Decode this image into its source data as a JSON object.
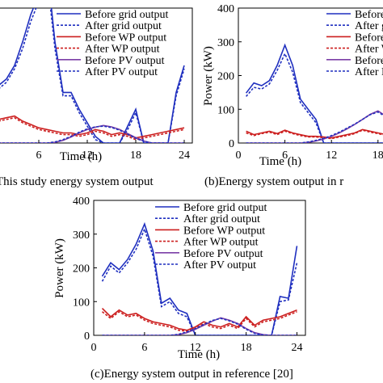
{
  "chart_data": [
    {
      "type": "line",
      "caption": "This study energy system output",
      "xlabel": "Time (h)",
      "ylabel": "",
      "xticks": [
        6,
        12,
        18,
        24
      ],
      "yticks": [],
      "legend": {
        "placement": "top-right"
      },
      "series": [
        {
          "name": "Before grid output",
          "color": "#1f2fbf",
          "style": "solid",
          "x": [
            1,
            2,
            3,
            4,
            5,
            6,
            7,
            8,
            9,
            10,
            11,
            12,
            13,
            14,
            15,
            16,
            17,
            18,
            19,
            20,
            21,
            22,
            23,
            24
          ],
          "y": [
            170,
            190,
            230,
            300,
            380,
            440,
            530,
            300,
            150,
            150,
            100,
            60,
            20,
            0,
            0,
            0,
            50,
            100,
            0,
            0,
            0,
            0,
            150,
            230
          ]
        },
        {
          "name": "After grid output",
          "color": "#1f2fbf",
          "style": "dotted",
          "x": [
            1,
            2,
            3,
            4,
            5,
            6,
            7,
            8,
            9,
            10,
            11,
            12,
            13,
            14,
            15,
            16,
            17,
            18,
            19,
            20,
            21,
            22,
            23,
            24
          ],
          "y": [
            160,
            180,
            220,
            280,
            360,
            420,
            500,
            280,
            140,
            140,
            90,
            50,
            10,
            0,
            0,
            0,
            40,
            90,
            0,
            0,
            0,
            0,
            140,
            220
          ]
        },
        {
          "name": "Before WP output",
          "color": "#cc1f1f",
          "style": "solid",
          "x": [
            1,
            2,
            3,
            4,
            5,
            6,
            7,
            8,
            9,
            10,
            11,
            12,
            13,
            14,
            15,
            16,
            17,
            18,
            19,
            20,
            21,
            22,
            23,
            24
          ],
          "y": [
            70,
            75,
            80,
            65,
            55,
            45,
            40,
            35,
            30,
            30,
            25,
            30,
            40,
            35,
            25,
            30,
            25,
            15,
            20,
            25,
            30,
            35,
            40,
            45
          ]
        },
        {
          "name": "After WP output",
          "color": "#cc1f1f",
          "style": "dotted",
          "x": [
            1,
            2,
            3,
            4,
            5,
            6,
            7,
            8,
            9,
            10,
            11,
            12,
            13,
            14,
            15,
            16,
            17,
            18,
            19,
            20,
            21,
            22,
            23,
            24
          ],
          "y": [
            65,
            70,
            75,
            60,
            50,
            40,
            35,
            30,
            25,
            25,
            20,
            25,
            35,
            30,
            20,
            25,
            20,
            10,
            15,
            20,
            25,
            30,
            35,
            40
          ]
        },
        {
          "name": "Before PV output",
          "color": "#7b3fa6",
          "style": "solid",
          "x": [
            1,
            2,
            3,
            4,
            5,
            6,
            7,
            8,
            9,
            10,
            11,
            12,
            13,
            14,
            15,
            16,
            17,
            18,
            19,
            20,
            21,
            22,
            23,
            24
          ],
          "y": [
            0,
            0,
            0,
            0,
            0,
            0,
            0,
            2,
            8,
            18,
            30,
            40,
            47,
            52,
            48,
            40,
            28,
            16,
            6,
            0,
            0,
            0,
            0,
            0
          ]
        },
        {
          "name": "After PV output",
          "color": "#1f2fbf",
          "style": "dotted",
          "x": [
            1,
            2,
            3,
            4,
            5,
            6,
            7,
            8,
            9,
            10,
            11,
            12,
            13,
            14,
            15,
            16,
            17,
            18,
            19,
            20,
            21,
            22,
            23,
            24
          ],
          "y": [
            0,
            0,
            0,
            0,
            0,
            0,
            0,
            3,
            10,
            20,
            32,
            42,
            48,
            50,
            46,
            38,
            26,
            14,
            5,
            0,
            0,
            0,
            0,
            0
          ]
        }
      ],
      "xlim": [
        0,
        25
      ],
      "ylim": [
        0,
        400
      ]
    },
    {
      "type": "line",
      "caption": "(b)Energy system output in r",
      "xlabel": "Time (h)",
      "ylabel": "Power (kW)",
      "xticks": [
        0,
        6,
        12,
        18
      ],
      "yticks": [
        0,
        100,
        200,
        300,
        400
      ],
      "legend": {
        "placement": "top-right"
      },
      "series": [
        {
          "name": "Before grid output",
          "color": "#1f2fbf",
          "style": "solid",
          "x": [
            1,
            2,
            3,
            4,
            5,
            6,
            7,
            8,
            9,
            10,
            11,
            12,
            13,
            14,
            15,
            16,
            17,
            18,
            19,
            20,
            21,
            22,
            23,
            24
          ],
          "y": [
            148,
            178,
            170,
            185,
            230,
            290,
            230,
            130,
            100,
            70,
            0,
            0,
            0,
            0,
            0,
            0,
            0,
            0,
            0,
            0,
            0,
            0,
            0,
            0
          ]
        },
        {
          "name": "After grid output",
          "color": "#1f2fbf",
          "style": "dotted",
          "x": [
            1,
            2,
            3,
            4,
            5,
            6,
            7,
            8,
            9,
            10,
            11,
            12,
            13,
            14,
            15,
            16,
            17,
            18,
            19,
            20,
            21,
            22,
            23,
            24
          ],
          "y": [
            138,
            165,
            160,
            175,
            215,
            265,
            210,
            120,
            90,
            60,
            0,
            0,
            0,
            0,
            0,
            0,
            0,
            0,
            0,
            0,
            0,
            0,
            0,
            0
          ]
        },
        {
          "name": "Before WP output",
          "color": "#cc1f1f",
          "style": "solid",
          "x": [
            1,
            2,
            3,
            4,
            5,
            6,
            7,
            8,
            9,
            10,
            11,
            12,
            13,
            14,
            15,
            16,
            17,
            18,
            19,
            20,
            21,
            22,
            23,
            24
          ],
          "y": [
            35,
            25,
            30,
            35,
            28,
            38,
            30,
            25,
            20,
            20,
            18,
            15,
            20,
            25,
            30,
            40,
            35,
            30,
            25,
            20,
            15,
            20,
            25,
            30
          ]
        },
        {
          "name": "After WP output",
          "color": "#cc1f1f",
          "style": "dotted",
          "x": [
            1,
            2,
            3,
            4,
            5,
            6,
            7,
            8,
            9,
            10,
            11,
            12,
            13,
            14,
            15,
            16,
            17,
            18,
            19,
            20,
            21,
            22,
            23,
            24
          ],
          "y": [
            30,
            22,
            28,
            32,
            25,
            35,
            28,
            22,
            18,
            18,
            16,
            13,
            18,
            22,
            28,
            38,
            32,
            28,
            22,
            18,
            13,
            18,
            22,
            28
          ]
        },
        {
          "name": "Before PV output",
          "color": "#7b3fa6",
          "style": "solid",
          "x": [
            1,
            2,
            3,
            4,
            5,
            6,
            7,
            8,
            9,
            10,
            11,
            12,
            13,
            14,
            15,
            16,
            17,
            18,
            19,
            20,
            21,
            22,
            23,
            24
          ],
          "y": [
            0,
            0,
            0,
            0,
            0,
            0,
            0,
            0,
            2,
            6,
            12,
            20,
            30,
            42,
            55,
            70,
            85,
            95,
            80,
            60,
            35,
            15,
            5,
            0
          ]
        },
        {
          "name": "After PV output",
          "color": "#1f2fbf",
          "style": "dotted",
          "x": [
            1,
            2,
            3,
            4,
            5,
            6,
            7,
            8,
            9,
            10,
            11,
            12,
            13,
            14,
            15,
            16,
            17,
            18,
            19,
            20,
            21,
            22,
            23,
            24
          ],
          "y": [
            0,
            0,
            0,
            0,
            0,
            0,
            0,
            0,
            3,
            8,
            14,
            22,
            32,
            44,
            56,
            70,
            84,
            92,
            78,
            58,
            34,
            14,
            4,
            0
          ]
        }
      ],
      "xlim": [
        0,
        25
      ],
      "ylim": [
        0,
        400
      ]
    },
    {
      "type": "line",
      "caption": "(c)Energy system output in reference [20]",
      "xlabel": "Time (h)",
      "ylabel": "Power (kW)",
      "xticks": [
        0,
        6,
        12,
        18,
        24
      ],
      "yticks": [
        0,
        100,
        200,
        300,
        400
      ],
      "legend": {
        "placement": "top-right"
      },
      "series": [
        {
          "name": "Before grid output",
          "color": "#1f2fbf",
          "style": "solid",
          "x": [
            1,
            2,
            3,
            4,
            5,
            6,
            7,
            8,
            9,
            10,
            11,
            12,
            13,
            14,
            15,
            16,
            17,
            18,
            19,
            20,
            21,
            22,
            23,
            24
          ],
          "y": [
            175,
            215,
            195,
            225,
            270,
            330,
            250,
            95,
            110,
            75,
            65,
            0,
            0,
            0,
            0,
            0,
            0,
            0,
            0,
            0,
            0,
            115,
            110,
            265
          ]
        },
        {
          "name": "After grid output",
          "color": "#1f2fbf",
          "style": "dotted",
          "x": [
            1,
            2,
            3,
            4,
            5,
            6,
            7,
            8,
            9,
            10,
            11,
            12,
            13,
            14,
            15,
            16,
            17,
            18,
            19,
            20,
            21,
            22,
            23,
            24
          ],
          "y": [
            160,
            205,
            185,
            215,
            255,
            315,
            235,
            85,
            100,
            65,
            55,
            0,
            0,
            0,
            0,
            0,
            0,
            0,
            0,
            0,
            0,
            100,
            105,
            215
          ]
        },
        {
          "name": "Before WP output",
          "color": "#cc1f1f",
          "style": "solid",
          "x": [
            1,
            2,
            3,
            4,
            5,
            6,
            7,
            8,
            9,
            10,
            11,
            12,
            13,
            14,
            15,
            16,
            17,
            18,
            19,
            20,
            21,
            22,
            23,
            24
          ],
          "y": [
            80,
            55,
            75,
            60,
            65,
            50,
            40,
            35,
            30,
            20,
            15,
            25,
            40,
            30,
            25,
            35,
            25,
            55,
            30,
            45,
            50,
            55,
            65,
            75
          ]
        },
        {
          "name": "After WP output",
          "color": "#cc1f1f",
          "style": "dotted",
          "x": [
            1,
            2,
            3,
            4,
            5,
            6,
            7,
            8,
            9,
            10,
            11,
            12,
            13,
            14,
            15,
            16,
            17,
            18,
            19,
            20,
            21,
            22,
            23,
            24
          ],
          "y": [
            70,
            50,
            70,
            55,
            60,
            45,
            35,
            30,
            25,
            15,
            12,
            20,
            35,
            25,
            20,
            30,
            20,
            50,
            25,
            40,
            45,
            50,
            60,
            70
          ]
        },
        {
          "name": "Before PV output",
          "color": "#7b3fa6",
          "style": "solid",
          "x": [
            1,
            2,
            3,
            4,
            5,
            6,
            7,
            8,
            9,
            10,
            11,
            12,
            13,
            14,
            15,
            16,
            17,
            18,
            19,
            20,
            21,
            22,
            23,
            24
          ],
          "y": [
            0,
            0,
            0,
            0,
            0,
            0,
            0,
            0,
            0,
            2,
            8,
            18,
            30,
            42,
            52,
            45,
            35,
            20,
            8,
            2,
            0,
            0,
            0,
            0
          ]
        },
        {
          "name": "After PV output",
          "color": "#1f2fbf",
          "style": "dotted",
          "x": [
            1,
            2,
            3,
            4,
            5,
            6,
            7,
            8,
            9,
            10,
            11,
            12,
            13,
            14,
            15,
            16,
            17,
            18,
            19,
            20,
            21,
            22,
            23,
            24
          ],
          "y": [
            0,
            0,
            0,
            0,
            0,
            0,
            0,
            0,
            0,
            3,
            10,
            20,
            32,
            44,
            50,
            43,
            33,
            18,
            6,
            1,
            0,
            0,
            0,
            0
          ]
        }
      ],
      "xlim": [
        0,
        25
      ],
      "ylim": [
        0,
        400
      ]
    }
  ]
}
